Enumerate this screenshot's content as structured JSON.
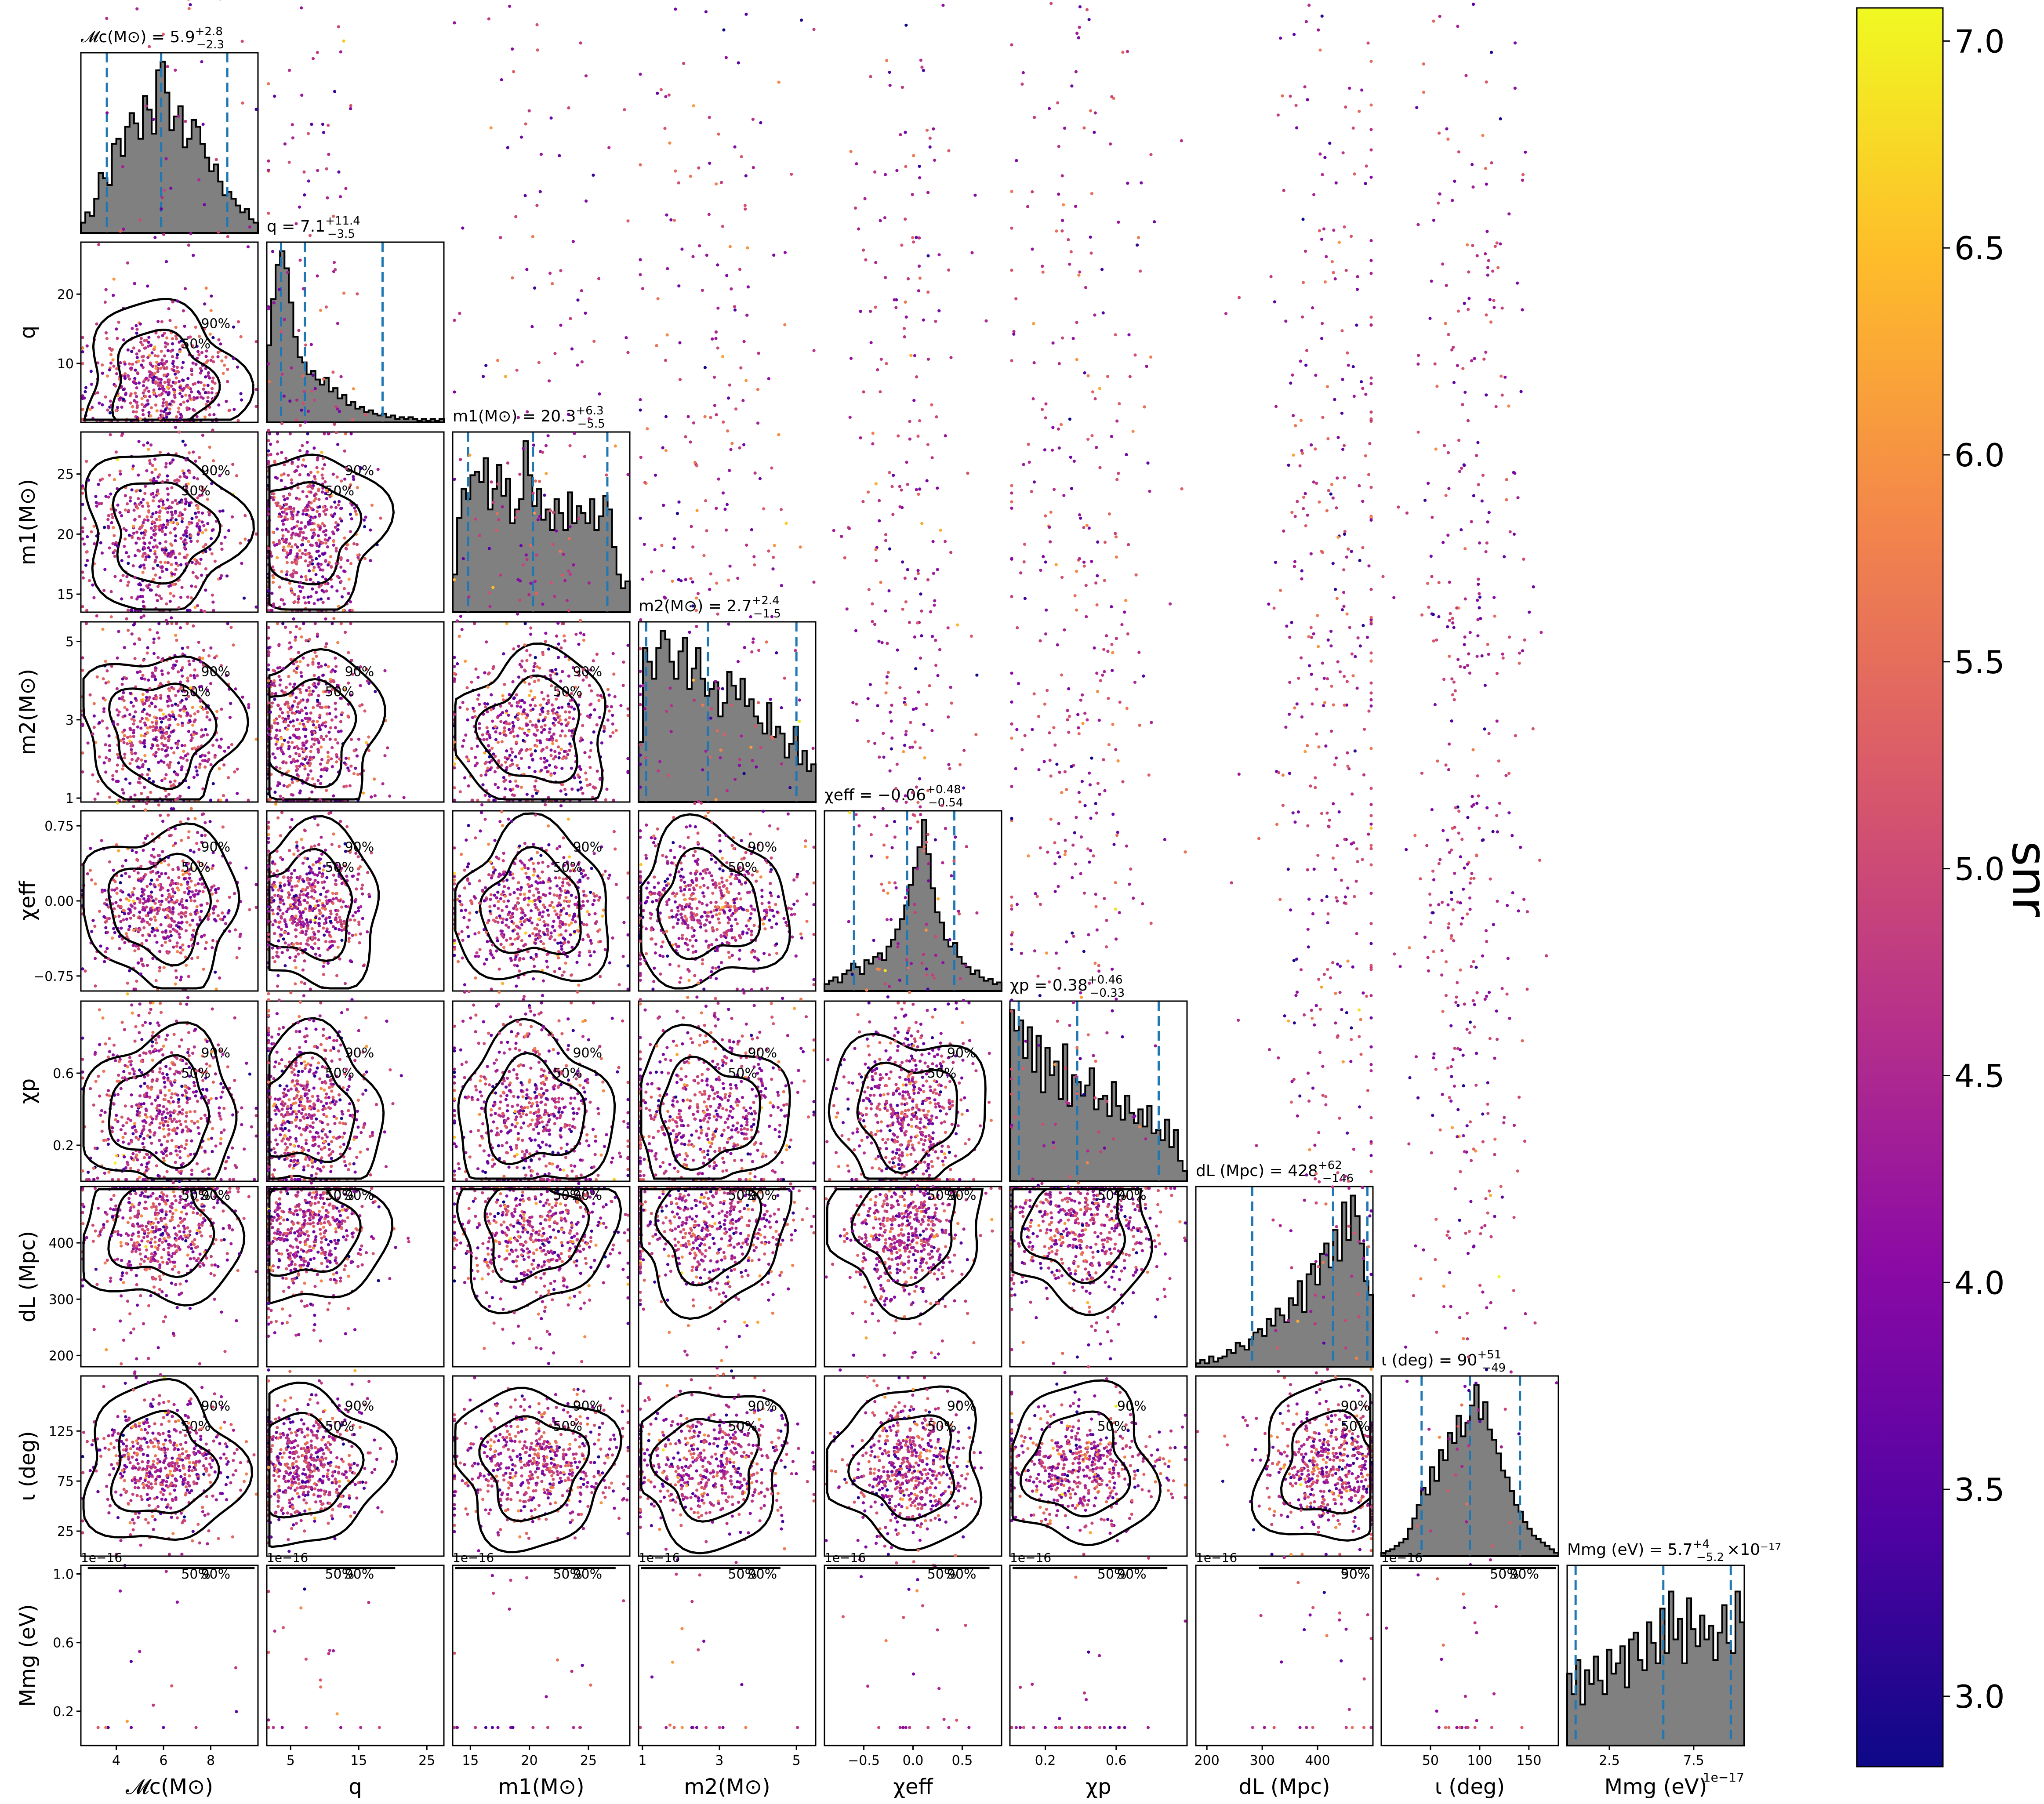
{
  "chart_data": {
    "type": "scatter",
    "subtype": "corner-plot",
    "parameters": [
      {
        "key": "mc",
        "xlabel": "𝓜c(M⊙)",
        "ylabel": "𝓜c(M⊙)",
        "title_name": "𝓜c(M⊙)",
        "median": "5.9",
        "plus": "+2.8",
        "minus": "−2.3",
        "range": [
          2.5,
          10.0
        ],
        "ticks": [
          4,
          6,
          8
        ],
        "tick_labels": [
          "4",
          "6",
          "8"
        ],
        "quantiles": [
          3.6,
          5.9,
          8.7
        ],
        "hist": [
          0.06,
          0.12,
          0.1,
          0.2,
          0.35,
          0.32,
          0.28,
          0.52,
          0.55,
          0.45,
          0.62,
          0.7,
          0.64,
          0.55,
          0.8,
          0.72,
          0.58,
          0.95,
          1.0,
          0.82,
          0.6,
          0.68,
          0.74,
          0.5,
          0.55,
          0.66,
          0.62,
          0.52,
          0.44,
          0.36,
          0.4,
          0.3,
          0.22,
          0.24,
          0.2,
          0.16,
          0.12,
          0.14,
          0.08,
          0.06
        ]
      },
      {
        "key": "q",
        "xlabel": "q",
        "ylabel": "q",
        "title_name": "q",
        "median": "7.1",
        "plus": "+11.4",
        "minus": "−3.5",
        "range": [
          1.5,
          27.5
        ],
        "ticks": [
          5,
          15,
          25
        ],
        "tick_labels": [
          "5",
          "15",
          "25"
        ],
        "y_ticks": [
          10,
          20
        ],
        "y_tick_labels": [
          "10",
          "20"
        ],
        "quantiles": [
          3.6,
          7.1,
          18.5
        ],
        "hist": [
          0.45,
          0.72,
          0.92,
          1.0,
          0.9,
          0.7,
          0.5,
          0.38,
          0.35,
          0.28,
          0.3,
          0.25,
          0.22,
          0.26,
          0.18,
          0.2,
          0.14,
          0.16,
          0.1,
          0.12,
          0.08,
          0.09,
          0.06,
          0.07,
          0.05,
          0.04,
          0.05,
          0.03,
          0.04,
          0.02,
          0.03,
          0.02,
          0.03,
          0.02,
          0.01,
          0.02,
          0.01,
          0.02,
          0.01,
          0.02
        ]
      },
      {
        "key": "m1",
        "xlabel": "m1(M⊙)",
        "ylabel": "m1(M⊙)",
        "title_name": "m1(M⊙)",
        "median": "20.3",
        "plus": "+6.3",
        "minus": "−5.5",
        "range": [
          13.5,
          28.5
        ],
        "ticks": [
          15,
          20,
          25
        ],
        "tick_labels": [
          "15",
          "20",
          "25"
        ],
        "quantiles": [
          14.8,
          20.3,
          26.6
        ],
        "hist": [
          0.22,
          0.55,
          0.72,
          0.66,
          0.8,
          0.82,
          0.76,
          0.9,
          0.6,
          0.72,
          0.86,
          0.68,
          0.78,
          0.52,
          0.6,
          0.66,
          1.0,
          0.8,
          0.62,
          0.72,
          0.54,
          0.6,
          0.48,
          0.66,
          0.58,
          0.48,
          0.7,
          0.52,
          0.62,
          0.58,
          0.52,
          0.66,
          0.48,
          0.56,
          0.68,
          0.6,
          0.38,
          0.22,
          0.14,
          0.18
        ]
      },
      {
        "key": "m2",
        "xlabel": "m2(M⊙)",
        "ylabel": "m2(M⊙)",
        "title_name": "m2(M⊙)",
        "median": "2.7",
        "plus": "+2.4",
        "minus": "−1.5",
        "range": [
          0.9,
          5.5
        ],
        "ticks": [
          1,
          3,
          5
        ],
        "tick_labels": [
          "1",
          "3",
          "5"
        ],
        "quantiles": [
          1.1,
          2.7,
          5.0
        ],
        "hist": [
          0.35,
          0.9,
          0.82,
          0.72,
          0.9,
          1.0,
          0.95,
          0.82,
          0.72,
          0.88,
          0.96,
          0.66,
          0.78,
          0.9,
          0.72,
          0.62,
          0.66,
          0.7,
          0.5,
          0.58,
          0.76,
          0.68,
          0.6,
          0.72,
          0.56,
          0.6,
          0.5,
          0.46,
          0.4,
          0.58,
          0.38,
          0.44,
          0.4,
          0.26,
          0.34,
          0.44,
          0.22,
          0.3,
          0.18,
          0.22
        ]
      },
      {
        "key": "chi_eff",
        "xlabel": "χeff",
        "ylabel": "χeff",
        "title_name": "χeff",
        "median": "−0.06",
        "plus": "+0.48",
        "minus": "−0.54",
        "range": [
          -0.9,
          0.9
        ],
        "ticks": [
          -0.75,
          0.0,
          0.75
        ],
        "tick_labels": [
          "−0.75",
          "0.00",
          "0.75"
        ],
        "x_ticks": [
          -0.5,
          0.0,
          0.5
        ],
        "x_tick_labels": [
          "−0.5",
          "0.0",
          "0.5"
        ],
        "quantiles": [
          -0.6,
          -0.06,
          0.42
        ],
        "hist": [
          0.04,
          0.06,
          0.08,
          0.05,
          0.1,
          0.12,
          0.16,
          0.14,
          0.1,
          0.18,
          0.16,
          0.2,
          0.22,
          0.18,
          0.26,
          0.3,
          0.36,
          0.42,
          0.5,
          0.62,
          0.72,
          0.84,
          1.0,
          0.8,
          0.6,
          0.46,
          0.4,
          0.3,
          0.26,
          0.28,
          0.2,
          0.16,
          0.14,
          0.1,
          0.12,
          0.08,
          0.06,
          0.07,
          0.04,
          0.05
        ]
      },
      {
        "key": "chi_p",
        "xlabel": "χp",
        "ylabel": "χp",
        "title_name": "χp",
        "median": "0.38",
        "plus": "+0.46",
        "minus": "−0.33",
        "range": [
          0.0,
          1.0
        ],
        "ticks": [
          0.2,
          0.6
        ],
        "tick_labels": [
          "0.2",
          "0.6"
        ],
        "quantiles": [
          0.05,
          0.38,
          0.84
        ],
        "hist": [
          1.0,
          0.88,
          0.94,
          0.72,
          0.9,
          0.64,
          0.85,
          0.52,
          0.78,
          0.62,
          0.7,
          0.48,
          0.8,
          0.44,
          0.62,
          0.58,
          0.5,
          0.56,
          0.66,
          0.42,
          0.48,
          0.5,
          0.38,
          0.58,
          0.44,
          0.36,
          0.5,
          0.4,
          0.34,
          0.42,
          0.32,
          0.44,
          0.28,
          0.3,
          0.24,
          0.36,
          0.2,
          0.3,
          0.12,
          0.06
        ]
      },
      {
        "key": "dL",
        "xlabel": "dL (Mpc)",
        "ylabel": "dL (Mpc)",
        "title_name": "dL (Mpc)",
        "median": "428",
        "plus": "+62",
        "minus": "−146",
        "range": [
          180,
          500
        ],
        "ticks": [
          200,
          300,
          400
        ],
        "tick_labels": [
          "200",
          "300",
          "400"
        ],
        "y_ticks": [
          200,
          300,
          400
        ],
        "y_tick_labels": [
          "200",
          "300",
          "400"
        ],
        "quantiles": [
          282,
          428,
          490
        ],
        "hist": [
          0.02,
          0.04,
          0.02,
          0.06,
          0.03,
          0.05,
          0.06,
          0.1,
          0.08,
          0.14,
          0.12,
          0.1,
          0.16,
          0.2,
          0.22,
          0.18,
          0.28,
          0.24,
          0.34,
          0.3,
          0.26,
          0.4,
          0.36,
          0.5,
          0.32,
          0.54,
          0.6,
          0.48,
          0.66,
          0.72,
          0.58,
          0.8,
          0.62,
          0.96,
          0.74,
          1.0,
          0.88,
          0.72,
          0.5,
          0.42
        ]
      },
      {
        "key": "iota",
        "xlabel": "ι (deg)",
        "ylabel": "ι (deg)",
        "title_name": "ι (deg)",
        "median": "90",
        "plus": "+51",
        "minus": "−49",
        "range": [
          0,
          180
        ],
        "ticks": [
          25,
          75,
          125
        ],
        "tick_labels": [
          "25",
          "75",
          "125"
        ],
        "x_ticks": [
          50,
          100,
          150
        ],
        "x_tick_labels": [
          "50",
          "100",
          "150"
        ],
        "quantiles": [
          41,
          90,
          141
        ],
        "hist": [
          0.02,
          0.03,
          0.04,
          0.06,
          0.08,
          0.1,
          0.16,
          0.22,
          0.3,
          0.4,
          0.36,
          0.52,
          0.44,
          0.62,
          0.56,
          0.72,
          0.66,
          0.82,
          0.7,
          0.78,
          0.88,
          1.0,
          0.8,
          0.9,
          0.74,
          0.68,
          0.6,
          0.5,
          0.46,
          0.38,
          0.3,
          0.26,
          0.2,
          0.16,
          0.12,
          0.1,
          0.08,
          0.06,
          0.04,
          0.02
        ]
      },
      {
        "key": "mg",
        "xlabel": "Mmg (eV)",
        "ylabel": "Mmg (eV)",
        "title_name": "Mmg (eV)",
        "median": "5.7",
        "plus": "+4",
        "minus": "−5.2",
        "title_suffix": "×10⁻¹⁷",
        "range": [
          0.0,
          1.05
        ],
        "ticks": [
          0.2,
          0.6,
          1.0
        ],
        "tick_labels": [
          "0.2",
          "0.6",
          "1.0"
        ],
        "x_range": [
          0.0,
          10.5
        ],
        "x_ticks": [
          2.5,
          7.5
        ],
        "x_tick_labels": [
          "2.5",
          "7.5"
        ],
        "quantiles": [
          0.5,
          5.7,
          9.7
        ],
        "offset_text_x": "1e−17",
        "offset_text_y": "1e−16",
        "hist": [
          0.42,
          0.3,
          0.5,
          0.24,
          0.44,
          0.36,
          0.52,
          0.38,
          0.3,
          0.56,
          0.42,
          0.48,
          0.58,
          0.34,
          0.62,
          0.66,
          0.5,
          0.44,
          0.72,
          0.6,
          0.48,
          0.8,
          0.54,
          0.9,
          0.62,
          0.74,
          0.48,
          0.86,
          0.68,
          0.58,
          0.76,
          0.62,
          0.7,
          0.5,
          0.66,
          0.82,
          0.6,
          0.54,
          0.9,
          0.72
        ]
      }
    ],
    "hist_color": "#808080",
    "quantile_line_color": "#1f77b4",
    "contour_levels": [
      "50%",
      "90%"
    ],
    "colorbar": {
      "label": "snr",
      "colormap": "plasma",
      "range": [
        2.83,
        7.08
      ],
      "ticks": [
        3.0,
        3.5,
        4.0,
        4.5,
        5.0,
        5.5,
        6.0,
        6.5,
        7.0
      ],
      "tick_labels": [
        "3.0",
        "3.5",
        "4.0",
        "4.5",
        "5.0",
        "5.5",
        "6.0",
        "6.5",
        "7.0"
      ]
    },
    "plasma_stops": [
      "#0d0887",
      "#5302a3",
      "#8b0aa5",
      "#b83289",
      "#db5c68",
      "#f48849",
      "#febc2a",
      "#f0f921"
    ],
    "samples_per_panel": 520
  }
}
